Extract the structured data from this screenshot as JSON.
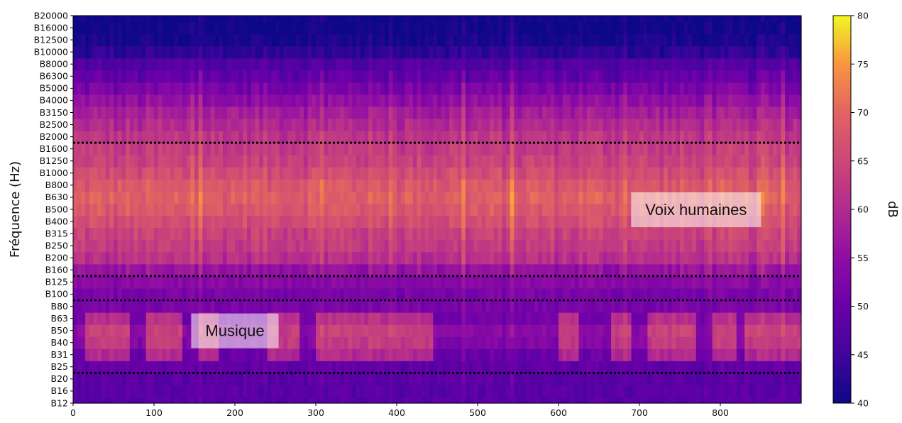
{
  "chart_data": {
    "type": "heatmap",
    "title": "",
    "xlabel": "",
    "ylabel": "Fréquence (Hz)",
    "xlim": [
      0,
      900
    ],
    "x_ticks": [
      0,
      100,
      200,
      300,
      400,
      500,
      600,
      700,
      800
    ],
    "y_categories": [
      "B12",
      "B16",
      "B20",
      "B25",
      "B31",
      "B40",
      "B50",
      "B63",
      "B80",
      "B100",
      "B125",
      "B160",
      "B200",
      "B250",
      "B315",
      "B400",
      "B500",
      "B630",
      "B800",
      "B1000",
      "B1250",
      "B1600",
      "B2000",
      "B2500",
      "B3150",
      "B4000",
      "B5000",
      "B6300",
      "B8000",
      "B10000",
      "B12500",
      "B16000",
      "B20000"
    ],
    "colorbar": {
      "label": "dB",
      "range": [
        40,
        80
      ],
      "ticks": [
        40,
        45,
        50,
        55,
        60,
        65,
        70,
        75,
        80
      ],
      "colormap": "plasma"
    },
    "band_profile_db": {
      "B12": 48,
      "B16": 48,
      "B20": 48,
      "B25": 49,
      "B31": 53,
      "B40": 56,
      "B50": 57,
      "B63": 54,
      "B80": 52,
      "B100": 52,
      "B125": 54,
      "B160": 56,
      "B200": 61,
      "B250": 63,
      "B315": 64,
      "B400": 66,
      "B500": 68,
      "B630": 69,
      "B800": 68,
      "B1000": 66,
      "B1250": 64,
      "B1600": 63,
      "B2000": 62,
      "B2500": 60,
      "B3150": 58,
      "B4000": 55,
      "B5000": 52,
      "B6300": 49,
      "B8000": 47,
      "B10000": 43,
      "B12500": 41,
      "B16000": 40,
      "B20000": 40
    },
    "music_segments": [
      [
        15,
        70
      ],
      [
        90,
        135
      ],
      [
        155,
        180
      ],
      [
        240,
        280
      ],
      [
        300,
        445
      ],
      [
        600,
        625
      ],
      [
        665,
        690
      ],
      [
        710,
        770
      ],
      [
        790,
        820
      ],
      [
        830,
        900
      ]
    ],
    "reference_lines": [
      "B25",
      "B100",
      "B160",
      "B2000"
    ],
    "annotations": [
      {
        "text": "Voix humaines",
        "band": "B500",
        "x": 770
      },
      {
        "text": "Musique",
        "band": "B50",
        "x": 200
      }
    ]
  }
}
